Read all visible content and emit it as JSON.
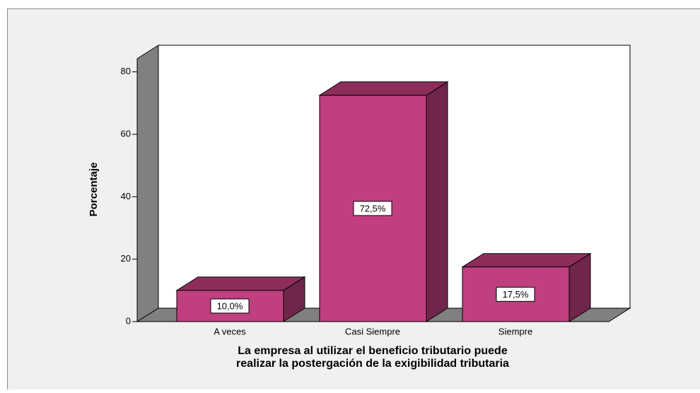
{
  "chart_data": {
    "type": "bar3d",
    "y_label": "Porcentaje",
    "x_label": [
      "La empresa al utilizar el beneficio tributario puede",
      "realizar la postergación de la exigibilidad tributaria"
    ],
    "categories": [
      "A veces",
      "Casi Siempre",
      "Siempre"
    ],
    "values": [
      10,
      72.5,
      17.5
    ],
    "value_labels": [
      "10,0%",
      "72,5%",
      "17,5%"
    ],
    "color": "#bf3f7f",
    "ylim": [
      0,
      84
    ],
    "yticks": [
      0,
      20,
      40,
      60,
      80
    ]
  }
}
